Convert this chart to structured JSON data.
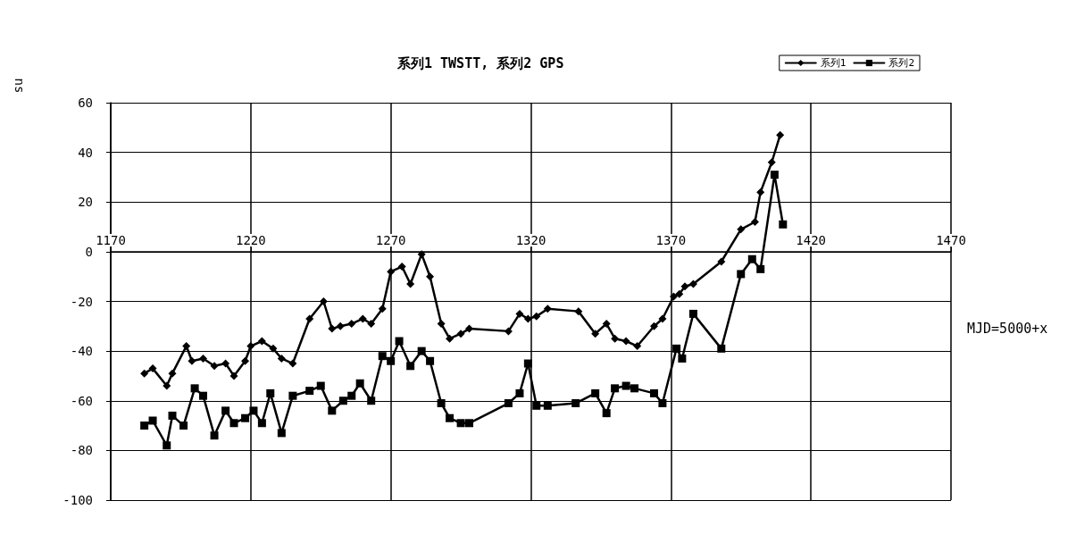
{
  "chart_data": {
    "type": "line",
    "title": "系列1 TWSTT, 系列2 GPS",
    "xlabel": "MJD=5000+x",
    "ylabel": "ns",
    "xlim": [
      1170,
      1470
    ],
    "xticks": [
      1170,
      1220,
      1270,
      1320,
      1370,
      1420,
      1470
    ],
    "ylim": [
      -100,
      60
    ],
    "yticks": [
      -100,
      -80,
      -60,
      -40,
      -20,
      0,
      20,
      40,
      60
    ],
    "grid": true,
    "legend": "top right",
    "line_style": "solid",
    "series": [
      {
        "name": "系列1",
        "color": "#000000",
        "marker": "diamond",
        "x": [
          1182,
          1185,
          1190,
          1192,
          1197,
          1199,
          1203,
          1207,
          1211,
          1214,
          1218,
          1220,
          1224,
          1228,
          1231,
          1235,
          1241,
          1246,
          1249,
          1252,
          1256,
          1260,
          1263,
          1267,
          1270,
          1274,
          1277,
          1281,
          1284,
          1288,
          1291,
          1295,
          1298,
          1312,
          1316,
          1319,
          1322,
          1326,
          1337,
          1343,
          1347,
          1350,
          1354,
          1358,
          1364,
          1367,
          1371,
          1373,
          1375,
          1378,
          1388,
          1395,
          1400,
          1402,
          1406,
          1409
        ],
        "values": [
          -49,
          -47,
          -54,
          -49,
          -38,
          -44,
          -43,
          -46,
          -45,
          -50,
          -44,
          -38,
          -36,
          -39,
          -43,
          -45,
          -27,
          -20,
          -31,
          -30,
          -29,
          -27,
          -29,
          -23,
          -8,
          -6,
          -13,
          -1,
          -10,
          -29,
          -35,
          -33,
          -31,
          -32,
          -25,
          -27,
          -26,
          -23,
          -24,
          -33,
          -29,
          -35,
          -36,
          -38,
          -30,
          -27,
          -18,
          -17,
          -14,
          -13,
          -4,
          9,
          12,
          24,
          36,
          47
        ]
      },
      {
        "name": "系列2",
        "color": "#000000",
        "marker": "square",
        "x": [
          1182,
          1185,
          1190,
          1192,
          1196,
          1200,
          1203,
          1207,
          1211,
          1214,
          1218,
          1221,
          1224,
          1227,
          1231,
          1235,
          1241,
          1245,
          1249,
          1253,
          1256,
          1259,
          1263,
          1267,
          1270,
          1273,
          1277,
          1281,
          1284,
          1288,
          1291,
          1295,
          1298,
          1312,
          1316,
          1319,
          1322,
          1326,
          1336,
          1343,
          1347,
          1350,
          1354,
          1357,
          1364,
          1367,
          1372,
          1374,
          1378,
          1388,
          1395,
          1399,
          1402,
          1407,
          1410
        ],
        "values": [
          -70,
          -68,
          -78,
          -66,
          -70,
          -55,
          -58,
          -74,
          -64,
          -69,
          -67,
          -64,
          -69,
          -57,
          -73,
          -58,
          -56,
          -54,
          -64,
          -60,
          -58,
          -53,
          -60,
          -42,
          -44,
          -36,
          -46,
          -40,
          -44,
          -61,
          -67,
          -69,
          -69,
          -61,
          -57,
          -45,
          -62,
          -62,
          -61,
          -57,
          -65,
          -55,
          -54,
          -55,
          -57,
          -61,
          -39,
          -43,
          -25,
          -39,
          -9,
          -3,
          -7,
          31,
          11
        ]
      }
    ]
  }
}
